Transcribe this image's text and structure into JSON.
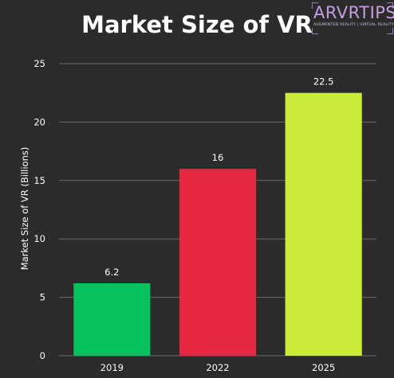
{
  "logo": {
    "main": "ARVRTIPS",
    "sub": "AUGMENTED REALITY | VIRTUAL REALITY"
  },
  "chart_data": {
    "type": "bar",
    "title": "Market Size of VR",
    "xlabel": "",
    "ylabel": "Market Size of VR (Billions)",
    "categories": [
      "2019",
      "2022",
      "2025"
    ],
    "values": [
      6.2,
      16,
      22.5
    ],
    "value_labels": [
      "6.2",
      "16",
      "22.5"
    ],
    "colors": [
      "#06c15c",
      "#e3283f",
      "#c8eb3a"
    ],
    "ylim": [
      0,
      25
    ],
    "yticks": [
      0,
      5,
      10,
      15,
      20,
      25
    ],
    "ytick_labels": [
      "0",
      "5",
      "10",
      "15",
      "20",
      "25"
    ],
    "grid": true,
    "legend": "none"
  }
}
